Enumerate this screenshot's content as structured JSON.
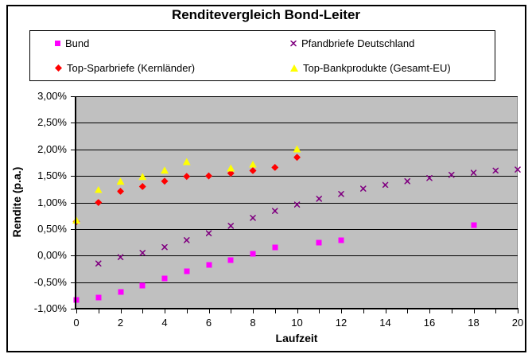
{
  "chart_data": {
    "type": "scatter",
    "title": "Renditevergleich Bond-Leiter",
    "xlabel": "Laufzeit",
    "ylabel": "Rendite (p.a.)",
    "xlim": [
      0,
      20
    ],
    "ylim": [
      -1.0,
      3.0
    ],
    "grid": "horizontal-major",
    "legend_position": "top",
    "plot_bg_color": "#C0C0C0",
    "y_ticks": [
      {
        "value": 3.0,
        "label": "3,00%"
      },
      {
        "value": 2.5,
        "label": "2,50%"
      },
      {
        "value": 2.0,
        "label": "2,00%"
      },
      {
        "value": 1.5,
        "label": "1,50%"
      },
      {
        "value": 1.0,
        "label": "1,00%"
      },
      {
        "value": 0.5,
        "label": "0,50%"
      },
      {
        "value": 0.0,
        "label": "0,00%"
      },
      {
        "value": -0.5,
        "label": "-0,50%"
      },
      {
        "value": -1.0,
        "label": "-1,00%"
      }
    ],
    "x_ticks": [
      {
        "value": 0,
        "label": "0"
      },
      {
        "value": 2,
        "label": "2"
      },
      {
        "value": 4,
        "label": "4"
      },
      {
        "value": 6,
        "label": "6"
      },
      {
        "value": 8,
        "label": "8"
      },
      {
        "value": 10,
        "label": "10"
      },
      {
        "value": 12,
        "label": "12"
      },
      {
        "value": 14,
        "label": "14"
      },
      {
        "value": 16,
        "label": "16"
      },
      {
        "value": 18,
        "label": "18"
      },
      {
        "value": 20,
        "label": "20"
      }
    ],
    "x_minor_tick_step": 1,
    "series": [
      {
        "name": "Bund",
        "marker": "square",
        "color": "#FF00FF",
        "points": [
          [
            0,
            -0.84
          ],
          [
            1,
            -0.79
          ],
          [
            2,
            -0.68
          ],
          [
            3,
            -0.57
          ],
          [
            4,
            -0.43
          ],
          [
            5,
            -0.29
          ],
          [
            6,
            -0.18
          ],
          [
            7,
            -0.08
          ],
          [
            8,
            0.03
          ],
          [
            9,
            0.15
          ],
          [
            11,
            0.24
          ],
          [
            12,
            0.29
          ],
          [
            18,
            0.57
          ]
        ]
      },
      {
        "name": "Pfandbriefe Deutschland",
        "marker": "x",
        "color": "#800080",
        "points": [
          [
            1,
            -0.15
          ],
          [
            2,
            -0.03
          ],
          [
            3,
            0.05
          ],
          [
            4,
            0.16
          ],
          [
            5,
            0.29
          ],
          [
            6,
            0.42
          ],
          [
            7,
            0.56
          ],
          [
            8,
            0.71
          ],
          [
            9,
            0.84
          ],
          [
            10,
            0.96
          ],
          [
            11,
            1.07
          ],
          [
            12,
            1.16
          ],
          [
            13,
            1.26
          ],
          [
            14,
            1.33
          ],
          [
            15,
            1.4
          ],
          [
            16,
            1.46
          ],
          [
            17,
            1.52
          ],
          [
            18,
            1.56
          ],
          [
            19,
            1.6
          ],
          [
            20,
            1.62
          ]
        ]
      },
      {
        "name": "Top-Sparbriefe (Kernländer)",
        "marker": "diamond",
        "color": "#FF0000",
        "points": [
          [
            0,
            0.64
          ],
          [
            1,
            1.0
          ],
          [
            2,
            1.21
          ],
          [
            3,
            1.3
          ],
          [
            4,
            1.4
          ],
          [
            5,
            1.49
          ],
          [
            6,
            1.5
          ],
          [
            7,
            1.55
          ],
          [
            8,
            1.6
          ],
          [
            9,
            1.66
          ],
          [
            10,
            1.85
          ]
        ]
      },
      {
        "name": "Top-Bankprodukte (Gesamt-EU)",
        "marker": "triangle",
        "color": "#FFFF00",
        "points": [
          [
            0,
            0.67
          ],
          [
            1,
            1.24
          ],
          [
            2,
            1.4
          ],
          [
            3,
            1.49
          ],
          [
            4,
            1.61
          ],
          [
            5,
            1.77
          ],
          [
            7,
            1.65
          ],
          [
            8,
            1.72
          ],
          [
            10,
            2.01
          ]
        ]
      }
    ]
  }
}
